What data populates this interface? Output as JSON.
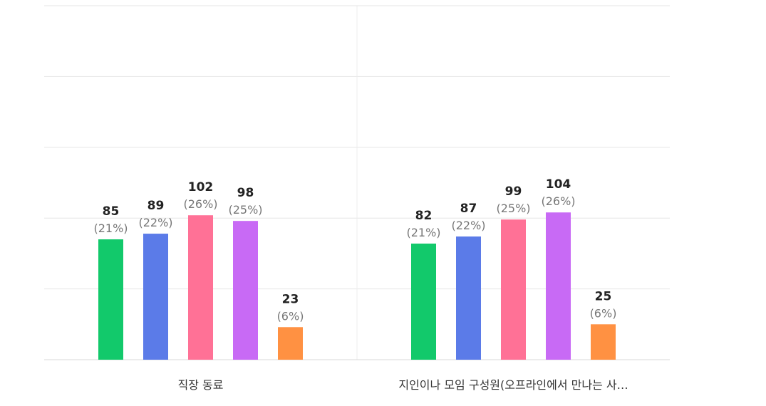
{
  "chart_data": {
    "type": "bar",
    "categories": [
      "직장 동료",
      "지인이나 모임 구성원(오프라인에서 만나는 사…"
    ],
    "series": [
      {
        "values": [
          85,
          82
        ],
        "percent_labels": [
          "(21%)",
          "(21%)"
        ],
        "color": "#12c96b"
      },
      {
        "values": [
          89,
          87
        ],
        "percent_labels": [
          "(22%)",
          "(22%)"
        ],
        "color": "#5b7be8"
      },
      {
        "values": [
          102,
          99
        ],
        "percent_labels": [
          "(26%)",
          "(25%)"
        ],
        "color": "#ff7196"
      },
      {
        "values": [
          98,
          104
        ],
        "percent_labels": [
          "(25%)",
          "(26%)"
        ],
        "color": "#c86af5"
      },
      {
        "values": [
          23,
          25
        ],
        "percent_labels": [
          "(6%)",
          "(6%)"
        ],
        "color": "#ff9142"
      }
    ],
    "ylim": [
      0,
      250
    ],
    "grid": true,
    "legend": "none"
  }
}
